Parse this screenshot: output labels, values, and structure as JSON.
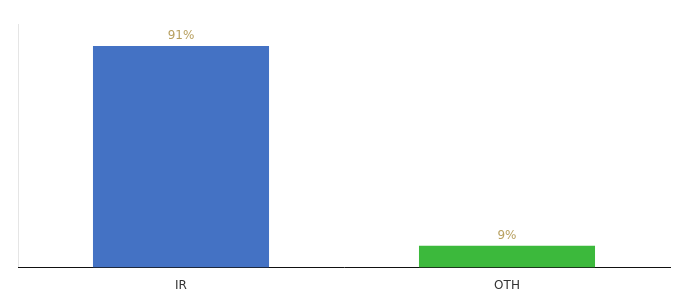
{
  "chart_data": {
    "type": "bar",
    "categories": [
      "IR",
      "OTH"
    ],
    "values": [
      91,
      9
    ],
    "value_labels": [
      "91%",
      "9%"
    ],
    "colors": [
      "#4472c4",
      "#3cb93c"
    ],
    "ylim": [
      0,
      100
    ],
    "yticks": [],
    "grid": false,
    "data_labels": true,
    "tick_labels": "x"
  }
}
